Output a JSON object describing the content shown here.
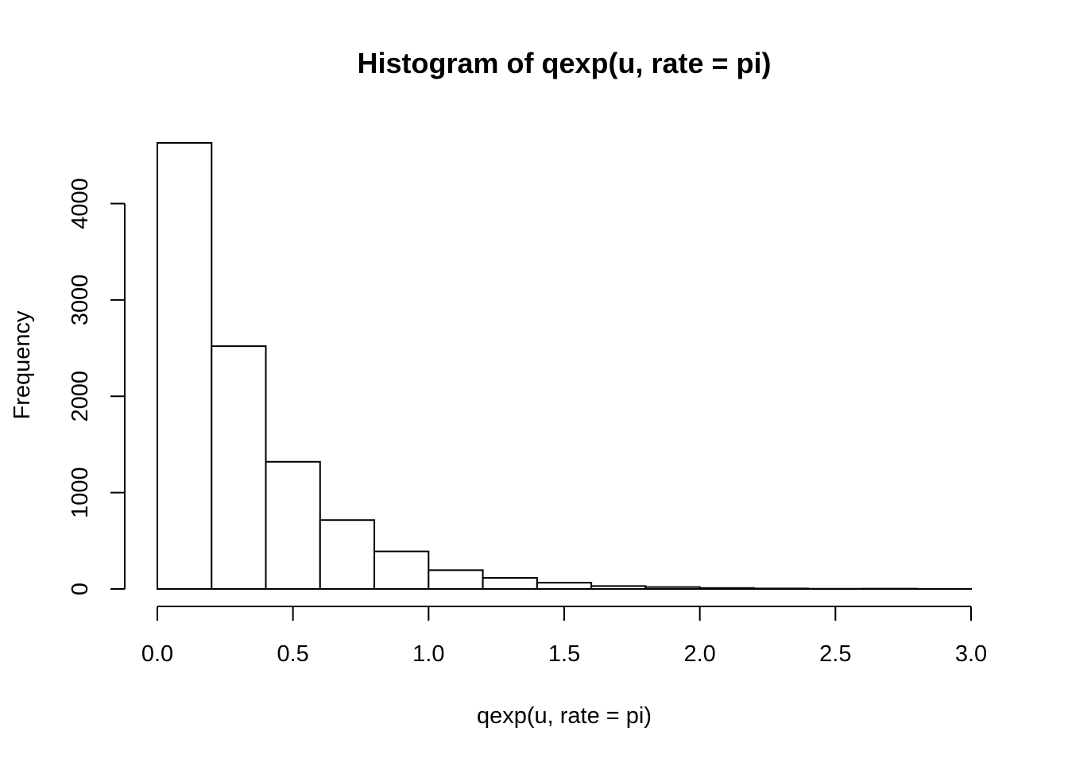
{
  "chart_data": {
    "type": "bar",
    "title": "Histogram of qexp(u, rate = pi)",
    "xlabel": "qexp(u, rate = pi)",
    "ylabel": "Frequency",
    "bins": [
      {
        "start": 0.0,
        "end": 0.2,
        "count": 4630
      },
      {
        "start": 0.2,
        "end": 0.4,
        "count": 2520
      },
      {
        "start": 0.4,
        "end": 0.6,
        "count": 1320
      },
      {
        "start": 0.6,
        "end": 0.8,
        "count": 715
      },
      {
        "start": 0.8,
        "end": 1.0,
        "count": 390
      },
      {
        "start": 1.0,
        "end": 1.2,
        "count": 195
      },
      {
        "start": 1.2,
        "end": 1.4,
        "count": 115
      },
      {
        "start": 1.4,
        "end": 1.6,
        "count": 65
      },
      {
        "start": 1.6,
        "end": 1.8,
        "count": 30
      },
      {
        "start": 1.8,
        "end": 2.0,
        "count": 20
      },
      {
        "start": 2.0,
        "end": 2.2,
        "count": 10
      },
      {
        "start": 2.2,
        "end": 2.4,
        "count": 5
      },
      {
        "start": 2.4,
        "end": 2.6,
        "count": 2
      },
      {
        "start": 2.6,
        "end": 2.8,
        "count": 3
      },
      {
        "start": 2.8,
        "end": 3.0,
        "count": 1
      }
    ],
    "xlim": [
      0,
      3
    ],
    "ylim": [
      0,
      4630
    ],
    "x_ticks": [
      0.0,
      0.5,
      1.0,
      1.5,
      2.0,
      2.5,
      3.0
    ],
    "x_tick_labels": [
      "0.0",
      "0.5",
      "1.0",
      "1.5",
      "2.0",
      "2.5",
      "3.0"
    ],
    "y_ticks": [
      0,
      1000,
      2000,
      3000,
      4000
    ],
    "y_tick_labels": [
      "0",
      "1000",
      "2000",
      "3000",
      "4000"
    ],
    "grid": false,
    "legend": "none"
  }
}
